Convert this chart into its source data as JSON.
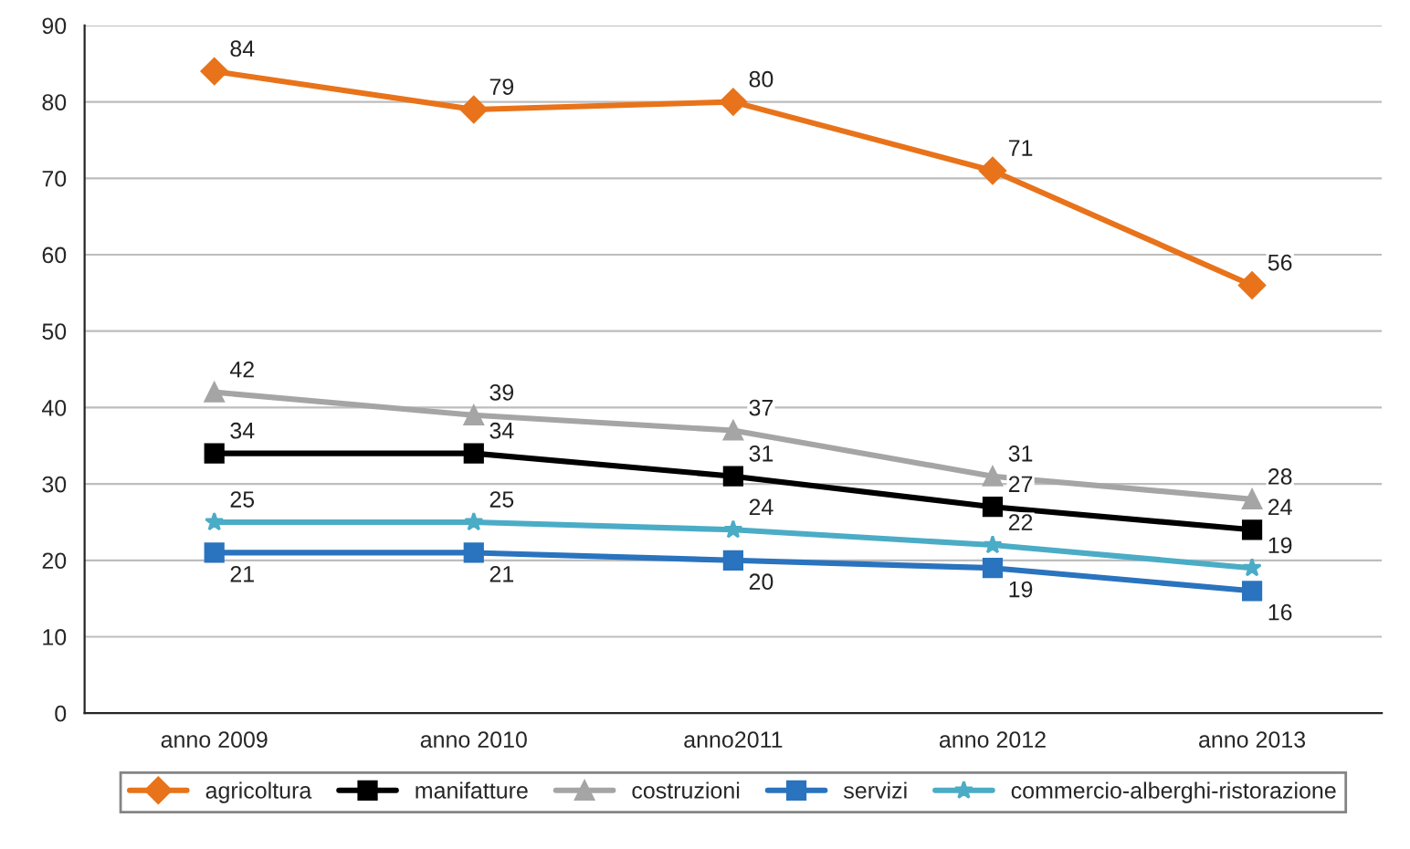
{
  "chart_data": {
    "type": "line",
    "categories": [
      "anno 2009",
      "anno 2010",
      "anno2011",
      "anno 2012",
      "anno 2013"
    ],
    "series": [
      {
        "name": "agricoltura",
        "color": "#e8731a",
        "marker": "diamond",
        "values": [
          84,
          79,
          80,
          71,
          56
        ]
      },
      {
        "name": "manifatture",
        "color": "#000000",
        "marker": "square",
        "values": [
          34,
          34,
          31,
          27,
          24
        ]
      },
      {
        "name": "costruzioni",
        "color": "#a5a5a5",
        "marker": "triangle",
        "values": [
          42,
          39,
          37,
          31,
          28
        ]
      },
      {
        "name": "servizi",
        "color": "#2a73be",
        "marker": "square",
        "values": [
          21,
          21,
          20,
          19,
          16
        ]
      },
      {
        "name": "commercio-alberghi-ristorazione",
        "color": "#4bacc6",
        "marker": "star",
        "values": [
          25,
          25,
          24,
          22,
          19
        ]
      }
    ],
    "ylim": [
      0,
      90
    ],
    "yticks": [
      0,
      10,
      20,
      30,
      40,
      50,
      60,
      70,
      80,
      90
    ],
    "grid": "y",
    "legend": "bottom",
    "data_labels": true
  }
}
